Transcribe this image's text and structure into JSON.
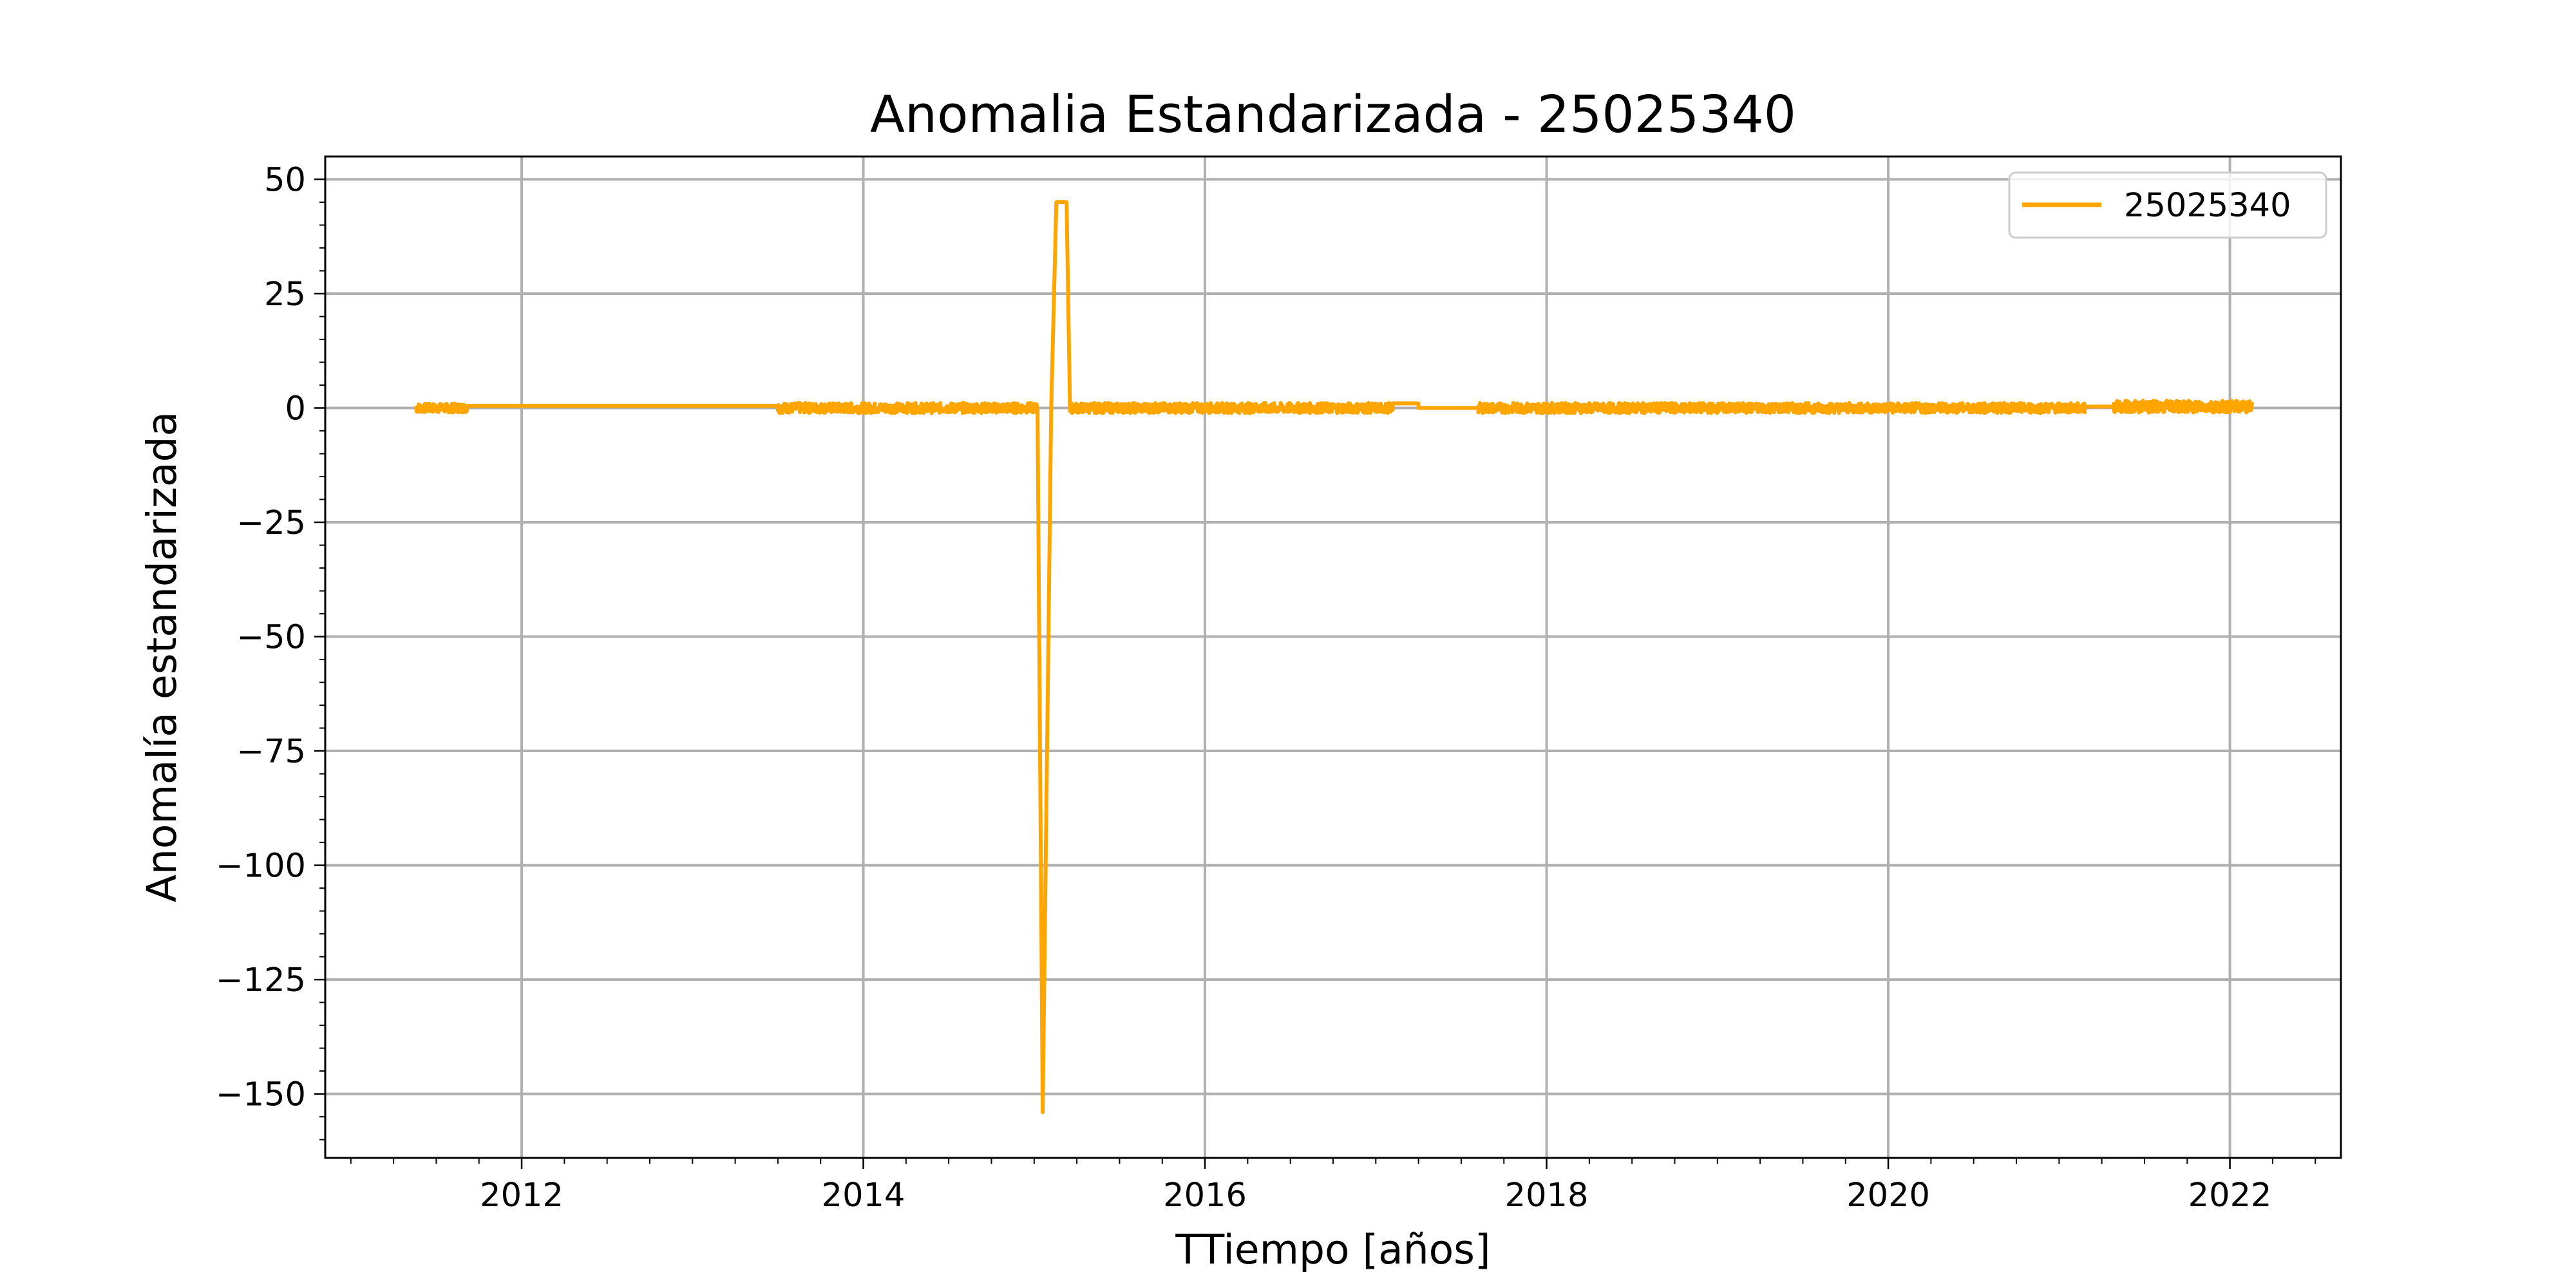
{
  "chart_data": {
    "type": "line",
    "title": "Anomalia Estandarizada - 25025340",
    "xlabel": "TTiempo [años]",
    "ylabel": "Anomalía estandarizada",
    "xlim": [
      2010.85,
      2022.65
    ],
    "ylim": [
      -164,
      55
    ],
    "xticks": [
      2012,
      2014,
      2016,
      2018,
      2020,
      2022
    ],
    "xtick_labels": [
      "2012",
      "2014",
      "2016",
      "2018",
      "2020",
      "2022"
    ],
    "yticks": [
      50,
      25,
      0,
      -25,
      -50,
      -75,
      -100,
      -125,
      -150
    ],
    "ytick_labels": [
      "50",
      "25",
      "0",
      "−25",
      "−50",
      "−75",
      "−100",
      "−125",
      "−150"
    ],
    "grid": true,
    "legend": {
      "position": "upper-right"
    },
    "series": [
      {
        "name": "25025340",
        "color": "#ffa500",
        "segments": [
          {
            "x_range": [
              2011.38,
              2011.68
            ],
            "mean": 0.0,
            "noise": 1.0
          },
          {
            "x_range": [
              2011.68,
              2013.5
            ],
            "mean": 0.5,
            "noise": 0.0
          },
          {
            "x_range": [
              2013.5,
              2015.02
            ],
            "mean": 0.0,
            "noise": 1.1
          }
        ],
        "points": [
          [
            2015.02,
            -0.5
          ],
          [
            2015.05,
            -154
          ],
          [
            2015.1,
            0
          ],
          [
            2015.13,
            45
          ],
          [
            2015.19,
            45
          ],
          [
            2015.21,
            0
          ]
        ],
        "segments_after": [
          {
            "x_range": [
              2015.21,
              2017.1
            ],
            "mean": 0.0,
            "noise": 1.1
          },
          {
            "x_range": [
              2017.1,
              2017.25
            ],
            "mean": 1.0,
            "noise": 0.0
          },
          {
            "x_range": [
              2017.25,
              2017.6
            ],
            "mean": 0.0,
            "noise": 0.0
          },
          {
            "x_range": [
              2017.6,
              2021.15
            ],
            "mean": 0.0,
            "noise": 1.1
          },
          {
            "x_range": [
              2021.15,
              2021.32
            ],
            "mean": 0.3,
            "noise": 0.0
          },
          {
            "x_range": [
              2021.32,
              2022.13
            ],
            "mean": 0.3,
            "noise": 1.3
          }
        ]
      }
    ]
  }
}
